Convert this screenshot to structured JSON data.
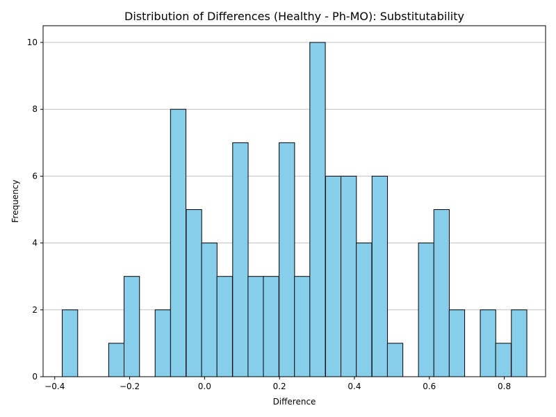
{
  "chart_data": {
    "type": "bar",
    "title": "Distribution of Differences (Healthy - Ph-MO): Substitutability",
    "xlabel": "Difference",
    "ylabel": "Frequency",
    "bin_width": 0.0413,
    "bins": [
      {
        "x0": -0.38,
        "count": 2
      },
      {
        "x0": -0.339,
        "count": 0
      },
      {
        "x0": -0.297,
        "count": 0
      },
      {
        "x0": -0.256,
        "count": 1
      },
      {
        "x0": -0.215,
        "count": 3
      },
      {
        "x0": -0.173,
        "count": 0
      },
      {
        "x0": -0.132,
        "count": 2
      },
      {
        "x0": -0.091,
        "count": 8
      },
      {
        "x0": -0.049,
        "count": 5
      },
      {
        "x0": -0.008,
        "count": 4
      },
      {
        "x0": 0.033,
        "count": 3
      },
      {
        "x0": 0.075,
        "count": 7
      },
      {
        "x0": 0.116,
        "count": 3
      },
      {
        "x0": 0.157,
        "count": 3
      },
      {
        "x0": 0.199,
        "count": 7
      },
      {
        "x0": 0.24,
        "count": 3
      },
      {
        "x0": 0.281,
        "count": 10
      },
      {
        "x0": 0.323,
        "count": 6
      },
      {
        "x0": 0.364,
        "count": 6
      },
      {
        "x0": 0.405,
        "count": 4
      },
      {
        "x0": 0.447,
        "count": 6
      },
      {
        "x0": 0.488,
        "count": 1
      },
      {
        "x0": 0.529,
        "count": 0
      },
      {
        "x0": 0.571,
        "count": 4
      },
      {
        "x0": 0.612,
        "count": 5
      },
      {
        "x0": 0.653,
        "count": 2
      },
      {
        "x0": 0.695,
        "count": 0
      },
      {
        "x0": 0.736,
        "count": 2
      },
      {
        "x0": 0.777,
        "count": 1
      },
      {
        "x0": 0.819,
        "count": 2
      }
    ],
    "xlim": [
      -0.4311,
      0.9103
    ],
    "ylim": [
      0,
      10.5
    ],
    "xticks": [
      -0.4,
      -0.2,
      0.0,
      0.2,
      0.4,
      0.6,
      0.8
    ],
    "xtick_labels": [
      "−0.4",
      "−0.2",
      "0.0",
      "0.2",
      "0.4",
      "0.6",
      "0.8"
    ],
    "yticks": [
      0,
      2,
      4,
      6,
      8,
      10
    ],
    "ytick_labels": [
      "0",
      "2",
      "4",
      "6",
      "8",
      "10"
    ],
    "grid": "y",
    "bar_color": "#87CEEB",
    "edge_color": "#000000",
    "grid_color": "#c0c0c0"
  }
}
